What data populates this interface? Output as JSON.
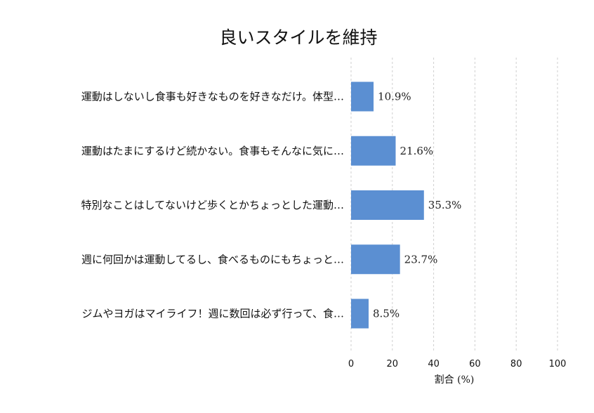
{
  "chart_data": {
    "type": "bar",
    "orientation": "horizontal",
    "title": "良いスタイルを維持",
    "xlabel": "割合 (%)",
    "ylabel": "",
    "xlim": [
      0,
      100
    ],
    "xticks": [
      0,
      20,
      40,
      60,
      80,
      100
    ],
    "grid": true,
    "bar_color": "#5b8fd2",
    "categories": [
      "運動はしないし食事も好きなものを好きなだけ。体型…",
      "運動はたまにするけど続かない。食事もそんなに気に…",
      "特別なことはしてないけど歩くとかちょっとした運動…",
      "週に何回かは運動してるし、食べるものにもちょっと…",
      "ジムやヨガはマイライフ！週に数回は必ず行って、食…"
    ],
    "values": [
      10.9,
      21.6,
      35.3,
      23.7,
      8.5
    ],
    "data_labels": [
      "10.9%",
      "21.6%",
      "35.3%",
      "23.7%",
      "8.5%"
    ]
  }
}
